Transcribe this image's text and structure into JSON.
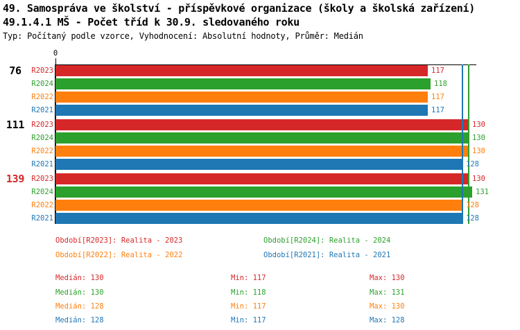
{
  "header": {
    "title_line1": "49. Samospráva ve školství - příspěvkové organizace (školy a školská zařízení)",
    "title_line2": "49.1.4.1 MŠ - Počet tříd k 30.9. sledovaného roku",
    "meta_line": "Typ: Počítaný podle vzorce, Vyhodnocení: Absolutní hodnoty, Průměr: Medián"
  },
  "colors": {
    "red": "#d62728",
    "green": "#2ca02c",
    "orange": "#ff7f0e",
    "blue": "#1f77b4",
    "black": "#000000",
    "axis": "#000000"
  },
  "chart_data": {
    "type": "bar",
    "orientation": "horizontal",
    "x_axis": {
      "zero_label": "0",
      "xmax": 132.4,
      "grid": false
    },
    "series": [
      {
        "name": "R2023",
        "color_key": "red"
      },
      {
        "name": "R2024",
        "color_key": "green"
      },
      {
        "name": "R2022",
        "color_key": "orange"
      },
      {
        "name": "R2021",
        "color_key": "blue"
      }
    ],
    "groups": [
      {
        "label": "76",
        "label_color_key": "black",
        "values": [
          117,
          118,
          117,
          117
        ]
      },
      {
        "label": "111",
        "label_color_key": "black",
        "values": [
          130,
          130,
          130,
          128
        ]
      },
      {
        "label": "139",
        "label_color_key": "red",
        "values": [
          130,
          131,
          128,
          128
        ]
      }
    ],
    "reference_lines": [
      {
        "value": 128,
        "color_key": "blue"
      },
      {
        "value": 130,
        "color_key": "green"
      }
    ]
  },
  "legend": {
    "items": [
      {
        "label": "Období[R2023]: Realita - 2023",
        "color_key": "red",
        "row": 0,
        "col": 0
      },
      {
        "label": "Období[R2024]: Realita - 2024",
        "color_key": "green",
        "row": 0,
        "col": 1
      },
      {
        "label": "Období[R2022]: Realita - 2022",
        "color_key": "orange",
        "row": 1,
        "col": 0
      },
      {
        "label": "Období[R2021]: Realita - 2021",
        "color_key": "blue",
        "row": 1,
        "col": 1
      }
    ]
  },
  "stats": {
    "rows": [
      {
        "color_key": "red",
        "median": "Medián: 130",
        "min": "Min: 117",
        "max": "Max: 130"
      },
      {
        "color_key": "green",
        "median": "Medián: 130",
        "min": "Min: 118",
        "max": "Max: 131"
      },
      {
        "color_key": "orange",
        "median": "Medián: 128",
        "min": "Min: 117",
        "max": "Max: 130"
      },
      {
        "color_key": "blue",
        "median": "Medián: 128",
        "min": "Min: 117",
        "max": "Max: 128"
      }
    ]
  }
}
